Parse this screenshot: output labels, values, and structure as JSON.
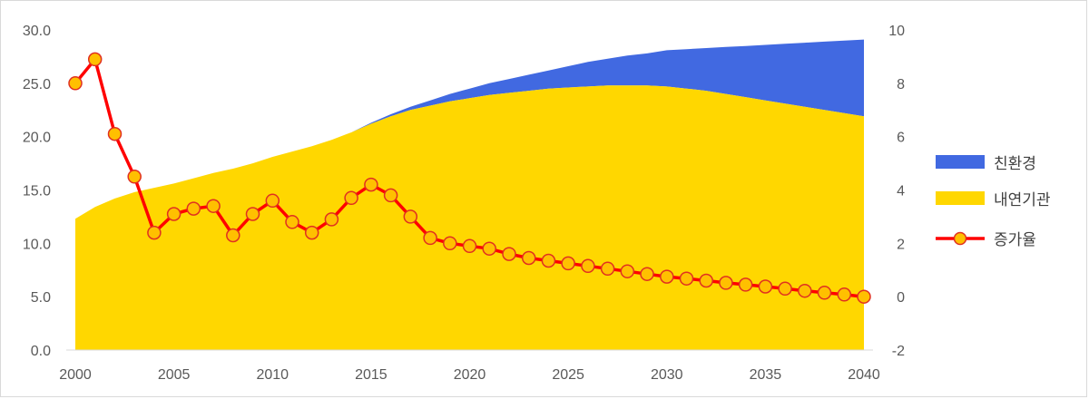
{
  "chart_data": {
    "type": "area",
    "title": "",
    "xlabel": "",
    "ylabel": "",
    "y2label": "",
    "x": [
      2000,
      2001,
      2002,
      2003,
      2004,
      2005,
      2006,
      2007,
      2008,
      2009,
      2010,
      2011,
      2012,
      2013,
      2014,
      2015,
      2016,
      2017,
      2018,
      2019,
      2020,
      2021,
      2022,
      2023,
      2024,
      2025,
      2026,
      2027,
      2028,
      2029,
      2030,
      2031,
      2032,
      2033,
      2034,
      2035,
      2036,
      2037,
      2038,
      2039,
      2040
    ],
    "xlim": [
      2000,
      2040
    ],
    "x_ticks": [
      "2000",
      "2005",
      "2010",
      "2015",
      "2020",
      "2025",
      "2030",
      "2035",
      "2040"
    ],
    "x_tick_values": [
      2000,
      2005,
      2010,
      2015,
      2020,
      2025,
      2030,
      2035,
      2040
    ],
    "ylim": [
      0,
      30
    ],
    "y_ticks": [
      "0.0",
      "5.0",
      "10.0",
      "15.0",
      "20.0",
      "25.0",
      "30.0"
    ],
    "y_tick_values": [
      0,
      5,
      10,
      15,
      20,
      25,
      30
    ],
    "y2lim": [
      -2,
      10
    ],
    "y2_ticks": [
      "-2",
      "0",
      "2",
      "4",
      "6",
      "8",
      "10"
    ],
    "y2_tick_values": [
      -2,
      0,
      2,
      4,
      6,
      8,
      10
    ],
    "grid": false,
    "legend_position": "right",
    "series": [
      {
        "name": "친환경",
        "kind": "stacked-area",
        "axis": "left",
        "color": "#4169E1",
        "values": [
          0,
          0,
          0,
          0,
          0,
          0,
          0,
          0,
          0,
          0,
          0,
          0,
          0,
          0,
          0,
          0.1,
          0.2,
          0.3,
          0.5,
          0.7,
          0.9,
          1.1,
          1.3,
          1.5,
          1.7,
          2.0,
          2.3,
          2.5,
          2.8,
          3.0,
          3.4,
          3.7,
          4.0,
          4.4,
          4.8,
          5.2,
          5.6,
          6.0,
          6.4,
          6.8,
          7.2
        ]
      },
      {
        "name": "내연기관",
        "kind": "stacked-area",
        "axis": "left",
        "color": "#FFD700",
        "values": [
          12.3,
          13.4,
          14.2,
          14.8,
          15.2,
          15.6,
          16.1,
          16.6,
          17.0,
          17.5,
          18.1,
          18.6,
          19.1,
          19.7,
          20.4,
          21.2,
          21.9,
          22.5,
          22.9,
          23.3,
          23.6,
          23.9,
          24.1,
          24.3,
          24.5,
          24.6,
          24.7,
          24.8,
          24.8,
          24.8,
          24.7,
          24.5,
          24.3,
          24.0,
          23.7,
          23.4,
          23.1,
          22.8,
          22.5,
          22.2,
          21.9
        ]
      },
      {
        "name": "증가율",
        "kind": "line-markers",
        "axis": "right",
        "color": "#FF0000",
        "marker_color": "#FFC000",
        "values": [
          8.0,
          8.9,
          6.1,
          4.5,
          2.4,
          3.1,
          3.3,
          3.4,
          2.3,
          3.1,
          3.6,
          2.8,
          2.4,
          2.9,
          3.7,
          4.2,
          3.8,
          3.0,
          2.2,
          2.0,
          1.9,
          1.8,
          1.6,
          1.45,
          1.35,
          1.25,
          1.15,
          1.05,
          0.95,
          0.85,
          0.75,
          0.68,
          0.6,
          0.52,
          0.45,
          0.38,
          0.3,
          0.22,
          0.15,
          0.08,
          0.0
        ]
      }
    ]
  }
}
